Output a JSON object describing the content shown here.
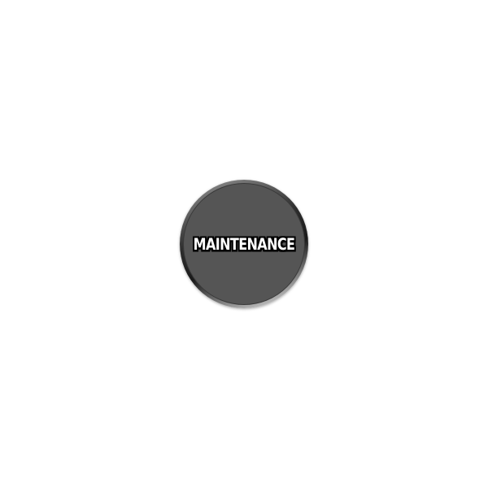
{
  "maintenance_button": {
    "label": "MAINTENANCE",
    "face_color": "#555555",
    "text_color": "#ffffff",
    "outline_color": "#000000"
  }
}
